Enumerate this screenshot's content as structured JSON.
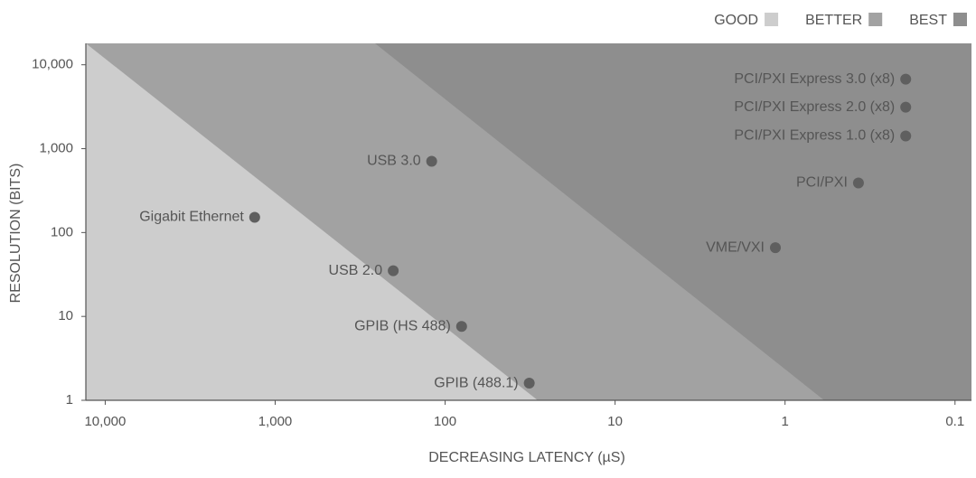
{
  "chart_data": {
    "type": "scatter",
    "x_label": "DECREASING LATENCY (µS)",
    "y_label": "RESOLUTION (BITS)",
    "log_x": true,
    "log_y": true,
    "x_reversed": true,
    "xlim": [
      13000,
      0.08
    ],
    "ylim": [
      1,
      18000
    ],
    "xticks": [
      {
        "value": 10000,
        "label": "10,000"
      },
      {
        "value": 1000,
        "label": "1,000"
      },
      100,
      10,
      1,
      0.1
    ],
    "yticks": [
      1,
      10,
      100,
      {
        "value": 1000,
        "label": "1,000"
      },
      {
        "value": 10000,
        "label": "10,000"
      }
    ],
    "legend": [
      {
        "name": "GOOD",
        "color": "#cdcdcd"
      },
      {
        "name": "BETTER",
        "color": "#a2a2a2"
      },
      {
        "name": "BEST",
        "color": "#8e8e8e"
      }
    ],
    "legend_position": "top-right",
    "color": "#5f5f5f",
    "points": [
      {
        "name": "Gigabit Ethernet",
        "x": 1320,
        "y": 152
      },
      {
        "name": "USB 3.0",
        "x": 120,
        "y": 707
      },
      {
        "name": "USB 2.0",
        "x": 202,
        "y": 35
      },
      {
        "name": "GPIB (HS 488)",
        "x": 80,
        "y": 7.6
      },
      {
        "name": "GPIB (488.1)",
        "x": 32,
        "y": 1.6
      },
      {
        "name": "VME/VXI",
        "x": 1.14,
        "y": 66
      },
      {
        "name": "PCI/PXI",
        "x": 0.37,
        "y": 390
      },
      {
        "name": "PCI/PXI Express 1.0 (x8)",
        "x": 0.195,
        "y": 1415
      },
      {
        "name": "PCI/PXI Express 2.0 (x8)",
        "x": 0.195,
        "y": 3125
      },
      {
        "name": "PCI/PXI Express 3.0 (x8)",
        "x": 0.195,
        "y": 6730
      }
    ]
  }
}
